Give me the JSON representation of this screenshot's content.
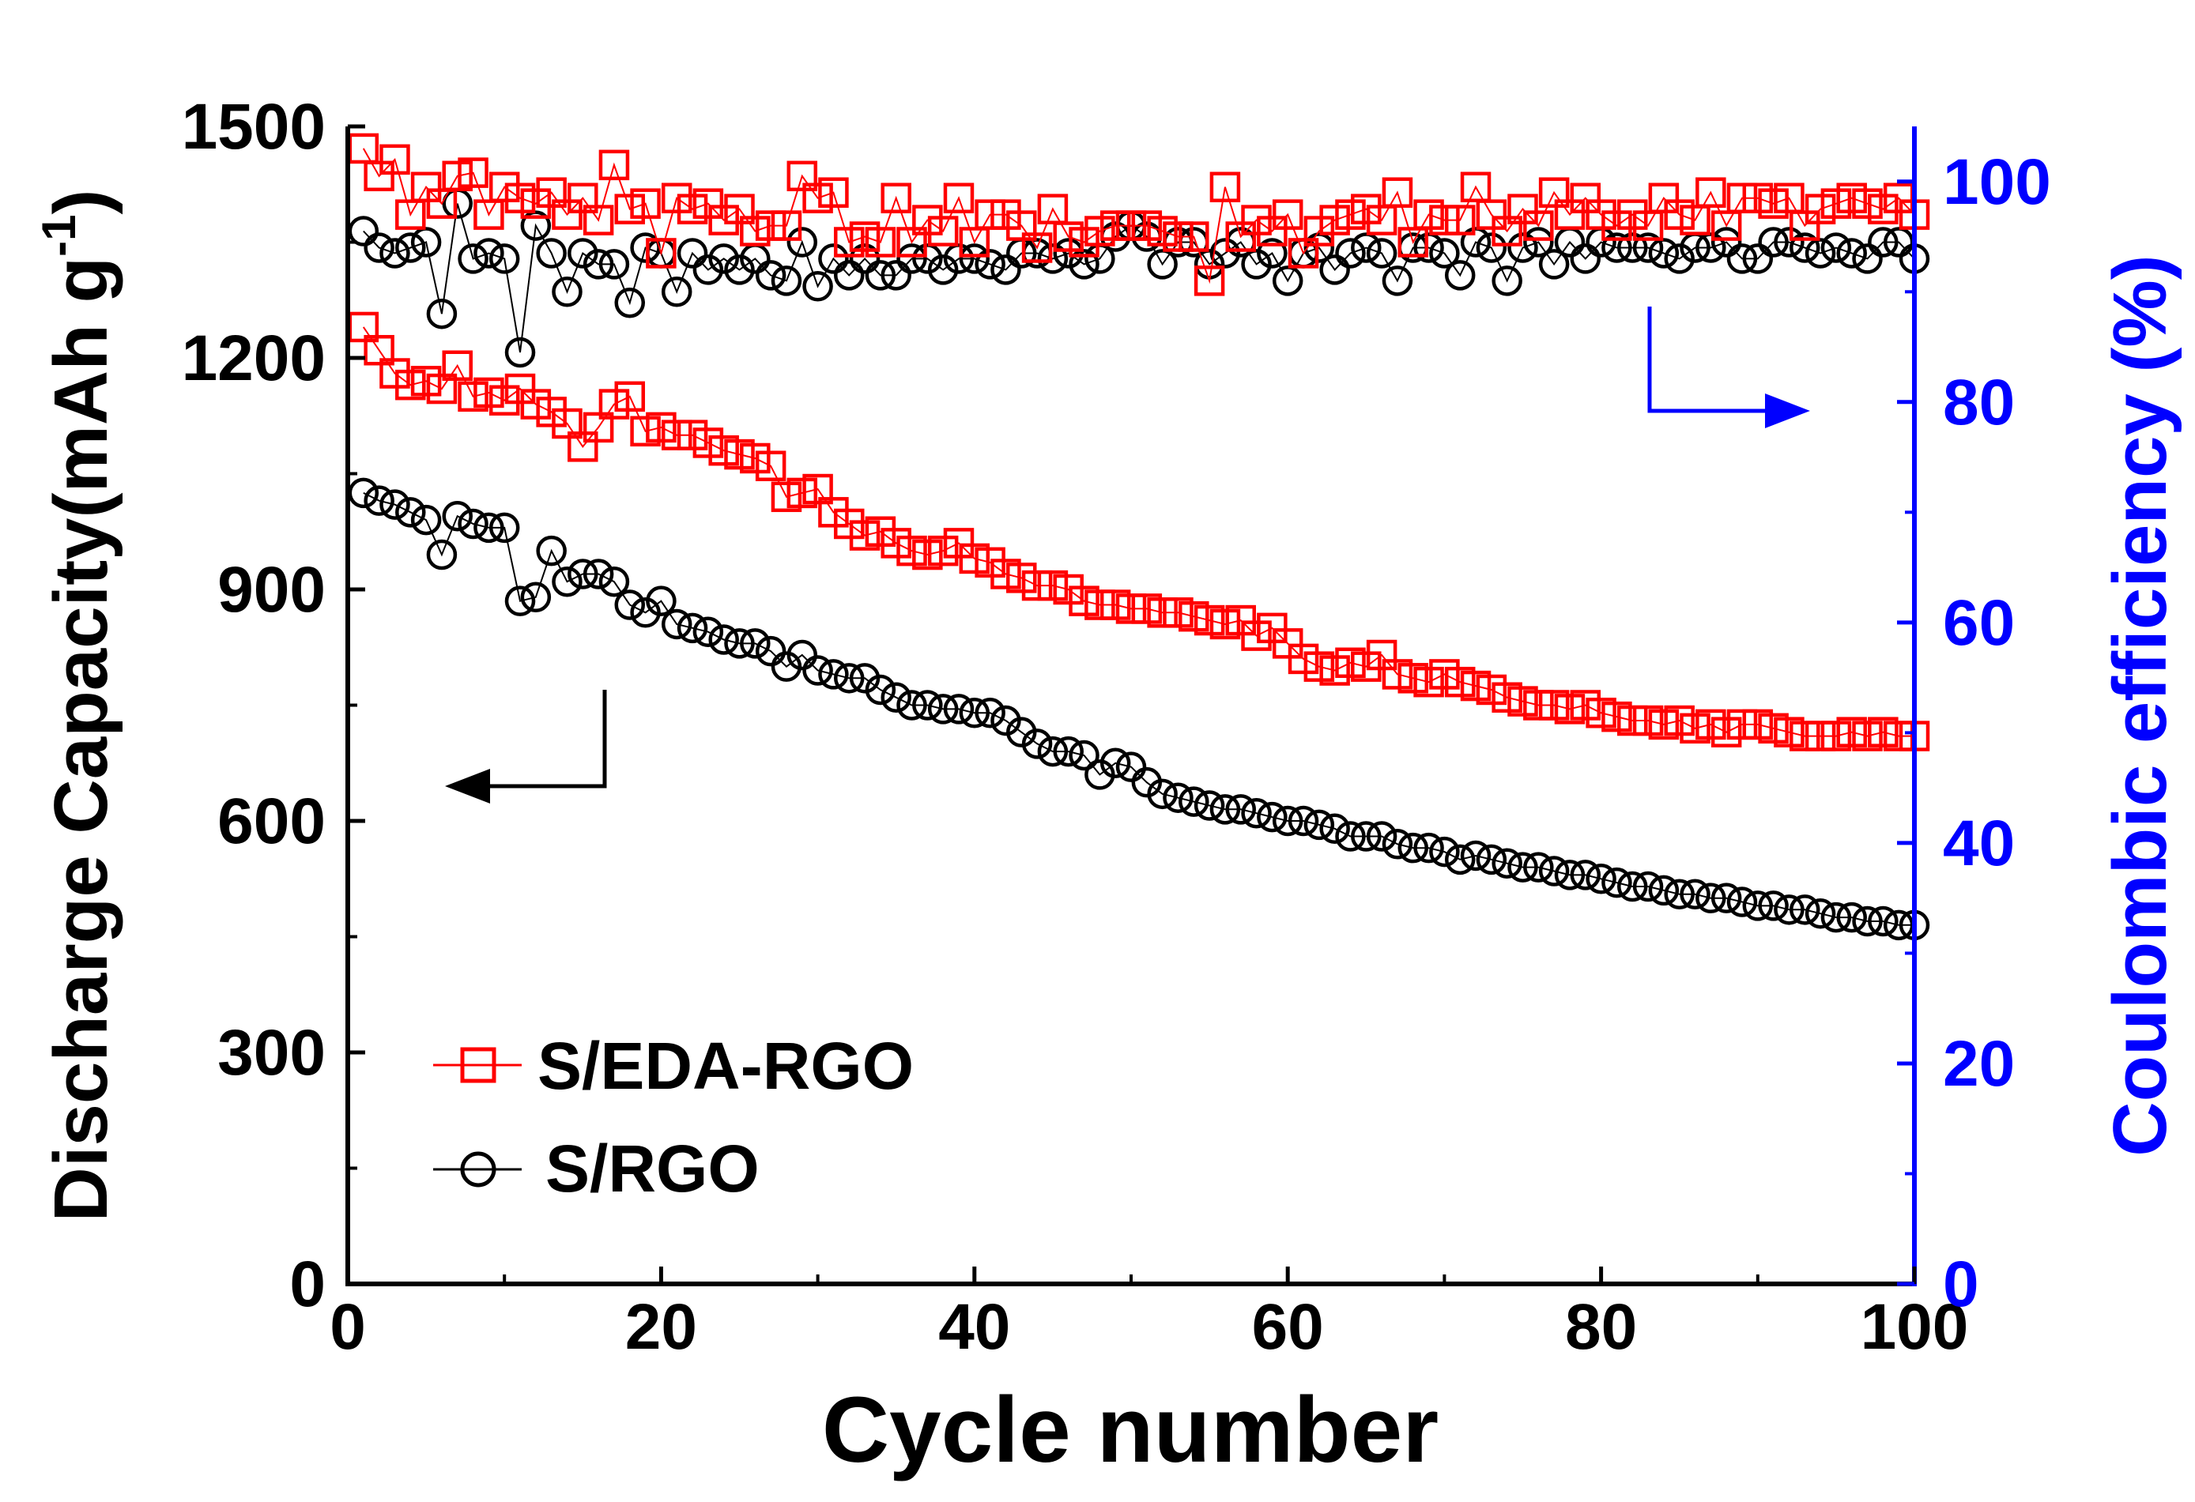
{
  "chart_data": {
    "type": "scatter",
    "title": "",
    "xlabel": "Cycle number",
    "ylabel_left": "Discharge Capacity(mAh g",
    "ylabel_left_superscript": "-1",
    "ylabel_left_close": ")",
    "ylabel_right": "Coulombic efficiency (%)",
    "xlim": [
      0,
      100
    ],
    "ylim_left": [
      0,
      1500
    ],
    "ylim_right": [
      0,
      105
    ],
    "x_ticks": [
      "0",
      "20",
      "40",
      "60",
      "80",
      "100"
    ],
    "y_left_ticks": [
      "0",
      "300",
      "600",
      "900",
      "1200",
      "1500"
    ],
    "y_right_ticks": [
      "0",
      "20",
      "40",
      "60",
      "80",
      "100"
    ],
    "grid": false,
    "legend_position": "bottom-left",
    "legend": [
      {
        "label": "S/EDA-RGO",
        "marker": "square",
        "color": "#ff0000"
      },
      {
        "label": "S/RGO",
        "marker": "circle",
        "color": "#000000"
      }
    ],
    "colors": {
      "left_axis": "#000000",
      "right_axis": "#0000ff",
      "series_eda": "#ff0000",
      "series_rgo": "#000000"
    },
    "series": [
      {
        "name": "S/EDA-RGO discharge capacity",
        "axis": "left",
        "marker": "square",
        "color": "#ff0000",
        "x": [
          1,
          2,
          3,
          4,
          5,
          6,
          7,
          8,
          9,
          10,
          11,
          12,
          13,
          14,
          15,
          16,
          17,
          18,
          19,
          20,
          21,
          22,
          23,
          24,
          25,
          26,
          27,
          28,
          29,
          30,
          31,
          32,
          33,
          34,
          35,
          36,
          37,
          38,
          39,
          40,
          41,
          42,
          43,
          44,
          45,
          46,
          47,
          48,
          49,
          50,
          51,
          52,
          53,
          54,
          55,
          56,
          57,
          58,
          59,
          60,
          61,
          62,
          63,
          64,
          65,
          66,
          67,
          68,
          69,
          70,
          71,
          72,
          73,
          74,
          75,
          76,
          77,
          78,
          79,
          80,
          81,
          82,
          83,
          84,
          85,
          86,
          87,
          88,
          89,
          90,
          91,
          92,
          93,
          94,
          95,
          96,
          97,
          98,
          99,
          100
        ],
        "values": [
          1240,
          1210,
          1180,
          1165,
          1170,
          1160,
          1190,
          1150,
          1155,
          1145,
          1160,
          1140,
          1130,
          1115,
          1085,
          1110,
          1140,
          1150,
          1105,
          1110,
          1100,
          1100,
          1090,
          1080,
          1075,
          1070,
          1060,
          1020,
          1025,
          1030,
          1000,
          985,
          970,
          975,
          960,
          950,
          945,
          950,
          960,
          940,
          935,
          920,
          915,
          905,
          905,
          900,
          885,
          880,
          880,
          875,
          875,
          870,
          870,
          865,
          860,
          855,
          860,
          840,
          850,
          830,
          810,
          800,
          795,
          805,
          800,
          815,
          790,
          785,
          780,
          790,
          780,
          775,
          770,
          760,
          755,
          750,
          750,
          745,
          750,
          740,
          735,
          730,
          730,
          725,
          730,
          720,
          725,
          715,
          725,
          725,
          720,
          715,
          710,
          710,
          710,
          715,
          710,
          715,
          710,
          710
        ]
      },
      {
        "name": "S/RGO discharge capacity",
        "axis": "left",
        "marker": "circle",
        "color": "#000000",
        "x": [
          1,
          2,
          3,
          4,
          5,
          6,
          7,
          8,
          9,
          10,
          11,
          12,
          13,
          14,
          15,
          16,
          17,
          18,
          19,
          20,
          21,
          22,
          23,
          24,
          25,
          26,
          27,
          28,
          29,
          30,
          31,
          32,
          33,
          34,
          35,
          36,
          37,
          38,
          39,
          40,
          41,
          42,
          43,
          44,
          45,
          46,
          47,
          48,
          49,
          50,
          51,
          52,
          53,
          54,
          55,
          56,
          57,
          58,
          59,
          60,
          61,
          62,
          63,
          64,
          65,
          66,
          67,
          68,
          69,
          70,
          71,
          72,
          73,
          74,
          75,
          76,
          77,
          78,
          79,
          80,
          81,
          82,
          83,
          84,
          85,
          86,
          87,
          88,
          89,
          90,
          91,
          92,
          93,
          94,
          95,
          96,
          97,
          98,
          99,
          100
        ],
        "values": [
          1025,
          1015,
          1010,
          1000,
          990,
          945,
          995,
          985,
          980,
          980,
          885,
          890,
          950,
          910,
          920,
          920,
          910,
          880,
          870,
          885,
          855,
          850,
          845,
          835,
          830,
          830,
          820,
          800,
          815,
          795,
          790,
          785,
          785,
          770,
          760,
          750,
          750,
          745,
          745,
          740,
          740,
          730,
          715,
          700,
          690,
          690,
          685,
          660,
          675,
          670,
          650,
          635,
          630,
          625,
          620,
          615,
          615,
          610,
          605,
          600,
          600,
          595,
          590,
          580,
          580,
          580,
          570,
          565,
          565,
          560,
          550,
          555,
          550,
          545,
          540,
          540,
          535,
          530,
          530,
          525,
          520,
          515,
          515,
          510,
          505,
          505,
          500,
          500,
          495,
          490,
          490,
          485,
          485,
          480,
          475,
          475,
          470,
          470,
          465,
          465
        ]
      },
      {
        "name": "S/EDA-RGO coulombic efficiency",
        "axis": "right",
        "marker": "square",
        "color": "#ff0000",
        "x": [
          1,
          2,
          3,
          4,
          5,
          6,
          7,
          8,
          9,
          10,
          11,
          12,
          13,
          14,
          15,
          16,
          17,
          18,
          19,
          20,
          21,
          22,
          23,
          24,
          25,
          26,
          27,
          28,
          29,
          30,
          31,
          32,
          33,
          34,
          35,
          36,
          37,
          38,
          39,
          40,
          41,
          42,
          43,
          44,
          45,
          46,
          47,
          48,
          49,
          50,
          51,
          52,
          53,
          54,
          55,
          56,
          57,
          58,
          59,
          60,
          61,
          62,
          63,
          64,
          65,
          66,
          67,
          68,
          69,
          70,
          71,
          72,
          73,
          74,
          75,
          76,
          77,
          78,
          79,
          80,
          81,
          82,
          83,
          84,
          85,
          86,
          87,
          88,
          89,
          90,
          91,
          92,
          93,
          94,
          95,
          96,
          97,
          98,
          99,
          100
        ],
        "values": [
          103.0,
          100.5,
          102.0,
          97.0,
          99.5,
          98.0,
          100.5,
          100.8,
          97.0,
          99.5,
          98.5,
          98.0,
          99.0,
          97.0,
          98.5,
          96.5,
          101.5,
          97.5,
          98.0,
          93.5,
          98.5,
          97.5,
          98.0,
          96.5,
          97.5,
          95.5,
          96.0,
          96.0,
          100.5,
          98.5,
          99.0,
          94.5,
          95.0,
          94.5,
          98.5,
          94.5,
          96.5,
          95.5,
          98.5,
          94.5,
          97.0,
          97.0,
          96.0,
          94.0,
          97.5,
          95.0,
          94.5,
          95.5,
          96.0,
          96.0,
          96.0,
          95.5,
          95.0,
          95.0,
          91.0,
          99.5,
          95.0,
          96.5,
          95.5,
          97.0,
          93.5,
          95.5,
          96.5,
          97.0,
          97.5,
          96.5,
          99.0,
          94.5,
          97.0,
          96.5,
          96.5,
          99.5,
          97.0,
          95.5,
          97.5,
          96.0,
          99.0,
          97.0,
          98.5,
          97.0,
          96.0,
          97.0,
          96.0,
          98.5,
          97.0,
          96.5,
          99.0,
          96.0,
          98.5,
          98.5,
          98.0,
          98.5,
          96.0,
          97.5,
          98.0,
          98.5,
          98.0,
          97.5,
          98.5,
          97.0
        ]
      },
      {
        "name": "S/RGO coulombic efficiency",
        "axis": "right",
        "marker": "circle",
        "color": "#000000",
        "x": [
          1,
          2,
          3,
          4,
          5,
          6,
          7,
          8,
          9,
          10,
          11,
          12,
          13,
          14,
          15,
          16,
          17,
          18,
          19,
          20,
          21,
          22,
          23,
          24,
          25,
          26,
          27,
          28,
          29,
          30,
          31,
          32,
          33,
          34,
          35,
          36,
          37,
          38,
          39,
          40,
          41,
          42,
          43,
          44,
          45,
          46,
          47,
          48,
          49,
          50,
          51,
          52,
          53,
          54,
          55,
          56,
          57,
          58,
          59,
          60,
          61,
          62,
          63,
          64,
          65,
          66,
          67,
          68,
          69,
          70,
          71,
          72,
          73,
          74,
          75,
          76,
          77,
          78,
          79,
          80,
          81,
          82,
          83,
          84,
          85,
          86,
          87,
          88,
          89,
          90,
          91,
          92,
          93,
          94,
          95,
          96,
          97,
          98,
          99,
          100
        ],
        "values": [
          95.5,
          94.0,
          93.5,
          94.0,
          94.5,
          88.0,
          98.0,
          93.0,
          93.5,
          93.0,
          84.5,
          96.0,
          93.5,
          90.0,
          93.5,
          92.5,
          92.5,
          89.0,
          94.0,
          93.5,
          90.0,
          93.5,
          92.0,
          93.0,
          92.0,
          93.0,
          91.5,
          91.0,
          94.5,
          90.5,
          93.0,
          91.5,
          93.0,
          91.5,
          91.5,
          93.0,
          93.0,
          92.0,
          93.0,
          93.0,
          92.5,
          92.0,
          93.5,
          93.5,
          93.0,
          93.5,
          92.5,
          93.0,
          95.0,
          96.0,
          95.0,
          92.5,
          94.5,
          94.5,
          92.5,
          93.5,
          94.5,
          92.5,
          93.5,
          91.0,
          93.5,
          94.0,
          92.0,
          93.5,
          94.0,
          93.5,
          91.0,
          94.0,
          94.0,
          93.5,
          91.5,
          94.5,
          94.0,
          91.0,
          94.0,
          94.5,
          92.5,
          94.5,
          93.0,
          94.5,
          94.0,
          94.0,
          94.0,
          93.5,
          93.0,
          94.0,
          94.0,
          94.5,
          93.0,
          93.0,
          94.5,
          94.5,
          94.0,
          93.5,
          94.0,
          93.5,
          93.0,
          94.5,
          94.5,
          93.0
        ]
      }
    ]
  }
}
